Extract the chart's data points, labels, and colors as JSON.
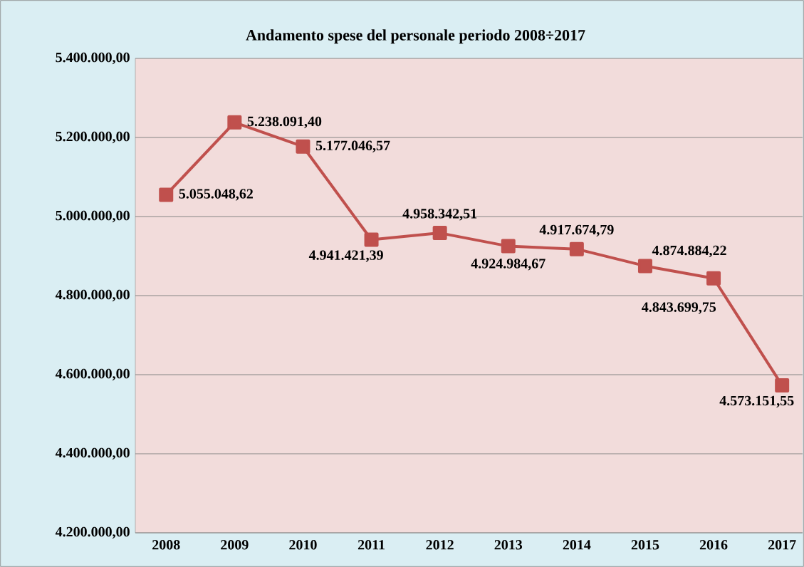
{
  "chart_data": {
    "type": "line",
    "title": "Andamento spese del personale periodo 2008÷2017",
    "categories": [
      "2008",
      "2009",
      "2010",
      "2011",
      "2012",
      "2013",
      "2014",
      "2015",
      "2016",
      "2017"
    ],
    "series": [
      {
        "color": "#c0504d",
        "values": [
          5055048.62,
          5238091.4,
          5177046.57,
          4941421.39,
          4958342.51,
          4924984.67,
          4917674.79,
          4874884.22,
          4843699.75,
          4573151.55
        ],
        "value_labels": [
          "5.055.048,62",
          "5.238.091,40",
          "5.177.046,57",
          "4.941.421,39",
          "4.958.342,51",
          "4.924.984,67",
          "4.917.674,79",
          "4.874.884,22",
          "4.843.699,75",
          "4.573.151,55"
        ]
      }
    ],
    "ylim": [
      4200000,
      5400000
    ],
    "yticks": [
      {
        "value": 4200000,
        "label": "4.200.000,00"
      },
      {
        "value": 4400000,
        "label": "4.400.000,00"
      },
      {
        "value": 4600000,
        "label": "4.600.000,00"
      },
      {
        "value": 4800000,
        "label": "4.800.000,00"
      },
      {
        "value": 5000000,
        "label": "5.000.000,00"
      },
      {
        "value": 5200000,
        "label": "5.200.000,00"
      },
      {
        "value": 5400000,
        "label": "5.400.000,00"
      }
    ],
    "grid": "y",
    "marker": "square",
    "line_style": "solid"
  }
}
